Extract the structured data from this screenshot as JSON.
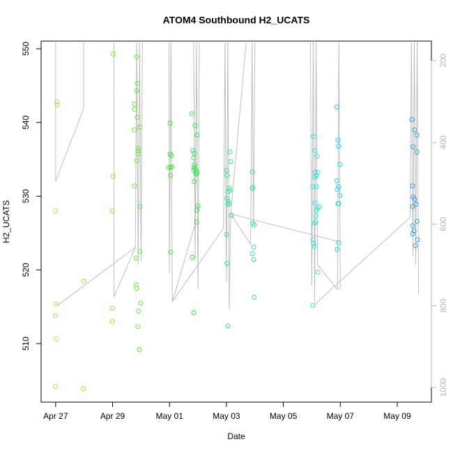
{
  "chart_data": {
    "type": "scatter",
    "title": "ATOM4 Southbound H2_UCATS",
    "xlabel": "Date",
    "ylabel": "H2_UCATS",
    "xlim": [
      116.49,
      130.2
    ],
    "xticks": [
      {
        "value": 117,
        "label": "Apr 27"
      },
      {
        "value": 119,
        "label": "Apr 29"
      },
      {
        "value": 121,
        "label": "May 01"
      },
      {
        "value": 123,
        "label": "May 03"
      },
      {
        "value": 125,
        "label": "May 05"
      },
      {
        "value": 127,
        "label": "May 07"
      },
      {
        "value": 129,
        "label": "May 09"
      }
    ],
    "ylim": [
      502.06,
      551.04
    ],
    "yticks": [
      510,
      520,
      530,
      540,
      550
    ],
    "y2lim": [
      1035.8,
      152.2
    ],
    "y2ticks": [
      200,
      400,
      600,
      800,
      1000
    ],
    "series": [
      {
        "color": "#a6e845",
        "x": [
          117.05,
          117.05,
          117.0,
          117.0,
          117.0,
          117.02,
          117.0,
          117.98,
          117.98
        ],
        "values": [
          542.8,
          542.4,
          528.0,
          515.4,
          513.8,
          510.6,
          504.2,
          518.5,
          503.9
        ]
      },
      {
        "color": "#88e33a",
        "x": [
          119.01,
          119.01,
          118.99,
          118.99,
          118.99
        ],
        "values": [
          549.3,
          532.7,
          528.0,
          514.8,
          513.0
        ]
      },
      {
        "color": "#6fe338",
        "x": [
          119.84,
          119.87,
          119.84,
          119.77,
          119.77,
          119.87,
          119.77,
          119.96,
          119.89,
          119.89,
          119.89,
          119.84,
          119.77,
          119.96,
          119.96,
          119.82,
          119.82,
          119.84,
          119.99,
          119.91,
          119.89,
          119.94
        ],
        "values": [
          548.9,
          545.3,
          544.3,
          542.5,
          541.8,
          540.7,
          539.0,
          539.4,
          536.5,
          536.2,
          535.7,
          534.8,
          531.4,
          528.6,
          522.5,
          521.6,
          518.0,
          517.5,
          515.5,
          514.4,
          512.3,
          509.2
        ]
      },
      {
        "color": "#44e038",
        "x": [
          121.02,
          121.02,
          121.07,
          120.97,
          121.04,
          121.09,
          121.04,
          121.04
        ],
        "values": [
          539.9,
          535.7,
          535.5,
          533.9,
          533.9,
          534.0,
          532.8,
          522.4
        ]
      },
      {
        "color": "#33e04a",
        "x": [
          121.78,
          121.9,
          121.97,
          121.82,
          121.87,
          121.85,
          121.87,
          121.87,
          121.92,
          121.85,
          121.92,
          121.97,
          121.95,
          121.87,
          122.0,
          121.97,
          121.95,
          121.8,
          121.85
        ],
        "values": [
          541.2,
          539.6,
          538.3,
          536.2,
          535.8,
          535.2,
          534.3,
          533.9,
          533.6,
          533.6,
          533.1,
          533.3,
          533.0,
          532.0,
          528.7,
          528.1,
          526.5,
          521.7,
          514.2
        ]
      },
      {
        "color": "#33e08a",
        "x": [
          123.12,
          123.15,
          123.0,
          123.02,
          123.1,
          123.05,
          123.12,
          123.02,
          123.05,
          123.05,
          123.1,
          123.17,
          123.0,
          123.02,
          123.05
        ],
        "values": [
          536.0,
          534.7,
          533.5,
          532.8,
          531.1,
          530.6,
          530.8,
          529.7,
          529.3,
          528.9,
          529.0,
          527.4,
          524.8,
          520.9,
          512.4
        ]
      },
      {
        "color": "#33e0a8",
        "x": [
          123.91,
          123.93,
          123.91,
          123.93,
          123.98,
          123.96,
          123.91,
          123.96,
          123.98
        ],
        "values": [
          533.3,
          531.2,
          531.0,
          526.3,
          526.1,
          523.1,
          522.2,
          521.4,
          516.3
        ]
      },
      {
        "color": "#33e0d8",
        "x": [
          126.06,
          126.11,
          126.18,
          126.11,
          126.21,
          126.16,
          126.09,
          126.04,
          126.16,
          126.11,
          126.21,
          126.26,
          126.16,
          126.14,
          126.14,
          126.09,
          126.04,
          126.06,
          126.09,
          126.21,
          126.04
        ],
        "values": [
          538.1,
          536.2,
          535.4,
          533.3,
          533.2,
          532.8,
          532.6,
          531.3,
          531.3,
          529.1,
          528.4,
          528.6,
          528.1,
          527.3,
          526.5,
          526.3,
          524.1,
          523.6,
          523.2,
          519.7,
          515.2
        ]
      },
      {
        "color": "#33cce0",
        "x": [
          126.87,
          126.92,
          126.94,
          126.99,
          126.87,
          126.94,
          126.89,
          126.99,
          126.94,
          126.92,
          126.94,
          126.89
        ],
        "values": [
          542.1,
          537.6,
          536.8,
          534.3,
          532.1,
          531.3,
          530.9,
          530.1,
          529.0,
          529.0,
          523.7,
          522.8
        ]
      },
      {
        "color": "#3399e0",
        "x": [
          129.52,
          129.61,
          129.69,
          129.56,
          129.69,
          129.54,
          129.56,
          129.61,
          129.66,
          129.54,
          129.69,
          129.54,
          129.59,
          129.54,
          129.71,
          129.64
        ],
        "values": [
          540.4,
          539.0,
          538.3,
          536.7,
          536.0,
          531.4,
          529.9,
          529.6,
          528.9,
          528.6,
          526.6,
          526.0,
          525.3,
          524.9,
          524.1,
          523.3
        ]
      },
      {
        "color": "#bebebe",
        "axis": "y2",
        "mode": "line",
        "x": [
          117.0,
          117.0,
          117.98,
          117.98,
          null,
          117.05,
          119.8,
          119.85,
          119.9,
          119.95,
          120.0,
          120.05,
          null,
          119.05,
          119.05,
          119.8,
          null,
          120.98,
          121.0,
          121.05,
          121.1,
          121.9,
          121.85,
          121.9,
          121.95,
          122.0,
          122.05,
          null,
          121.1,
          122.9,
          122.95,
          123.0,
          123.05,
          123.1,
          123.15,
          123.7,
          null,
          123.15,
          123.85,
          123.9,
          123.95,
          124.0,
          null,
          123.15,
          126.95,
          null,
          125.95,
          126.0,
          126.05,
          126.1,
          126.15,
          126.2,
          126.9,
          126.95,
          127.0,
          null,
          126.06,
          129.45,
          129.5,
          129.55,
          129.6,
          129.65,
          129.7,
          129.75
        ],
        "values": [
          150,
          495,
          318,
          150,
          null,
          800,
          657,
          150,
          700,
          150,
          690,
          150,
          null,
          150,
          778,
          657,
          null,
          150,
          720,
          150,
          790,
          600,
          150,
          690,
          150,
          760,
          150,
          null,
          790,
          610,
          150,
          740,
          150,
          810,
          575,
          150,
          null,
          575,
          650,
          150,
          600,
          150,
          null,
          575,
          643,
          null,
          150,
          750,
          150,
          790,
          150,
          700,
          760,
          150,
          760,
          null,
          799,
          584,
          150,
          680,
          150,
          700,
          150,
          770
        ]
      }
    ]
  }
}
